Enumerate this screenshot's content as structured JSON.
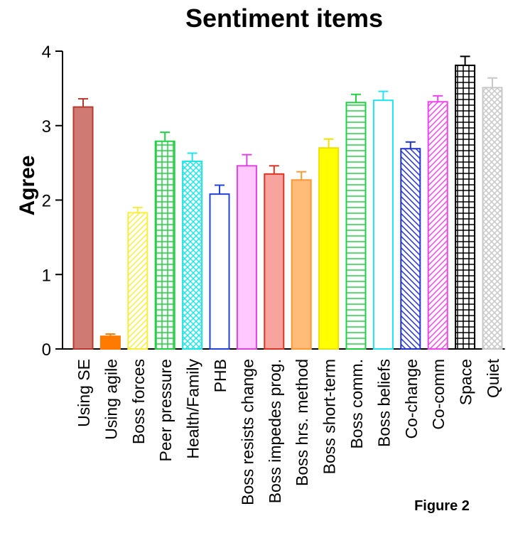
{
  "chart_data": {
    "type": "bar",
    "title": "Sentiment items",
    "ylabel": "Agree",
    "xlabel": "",
    "ylim": [
      0,
      4
    ],
    "yticks": [
      0,
      1,
      2,
      3,
      4
    ],
    "grid": false,
    "legend": "none",
    "categories": [
      "Using SE",
      "Using agile",
      "Boss forces",
      "Peer pressure",
      "Health/Family",
      "PHB",
      "Boss resists change",
      "Boss impedes prog.",
      "Boss hrs. method",
      "Boss short-term",
      "Boss comm.",
      "Boss beliefs",
      "Co-change",
      "Co-comm",
      "Space",
      "Quiet"
    ],
    "values": [
      3.25,
      0.17,
      1.83,
      2.79,
      2.52,
      2.08,
      2.46,
      2.35,
      2.27,
      2.7,
      3.31,
      3.34,
      2.69,
      3.32,
      3.81,
      3.51
    ],
    "error": [
      0.11,
      0.03,
      0.07,
      0.12,
      0.11,
      0.12,
      0.15,
      0.11,
      0.11,
      0.12,
      0.11,
      0.12,
      0.09,
      0.08,
      0.12,
      0.13
    ],
    "bars": [
      {
        "color": "#d07a74",
        "stroke": "#b83a2e",
        "pattern": "solid"
      },
      {
        "color": "#ff7a00",
        "stroke": "#ff7a00",
        "pattern": "solid"
      },
      {
        "color": "#f7ef3b",
        "stroke": "#f7ef3b",
        "pattern": "diag-right"
      },
      {
        "color": "#22d044",
        "stroke": "#22d044",
        "pattern": "grid"
      },
      {
        "color": "#22e4e4",
        "stroke": "#22e4e4",
        "pattern": "cross-hatch"
      },
      {
        "color": "#2244dd",
        "stroke": "#2244dd",
        "pattern": "none"
      },
      {
        "color": "#ffc8ff",
        "stroke": "#dd44dd",
        "pattern": "solid"
      },
      {
        "color": "#f7a49e",
        "stroke": "#dd3322",
        "pattern": "solid"
      },
      {
        "color": "#ffbb77",
        "stroke": "#ff9933",
        "pattern": "solid"
      },
      {
        "color": "#ffff00",
        "stroke": "#f0e000",
        "pattern": "solid"
      },
      {
        "color": "#22d044",
        "stroke": "#22d044",
        "pattern": "horizontal"
      },
      {
        "color": "#22e4f0",
        "stroke": "#22e4f0",
        "pattern": "none"
      },
      {
        "color": "#2233cc",
        "stroke": "#2233cc",
        "pattern": "diag-left"
      },
      {
        "color": "#ee44ee",
        "stroke": "#ee44ee",
        "pattern": "diag-right"
      },
      {
        "color": "#000000",
        "stroke": "#000000",
        "pattern": "grid"
      },
      {
        "color": "#c8c8c8",
        "stroke": "#c8c8c8",
        "pattern": "cross-hatch"
      }
    ],
    "annotation": "Figure 2"
  }
}
